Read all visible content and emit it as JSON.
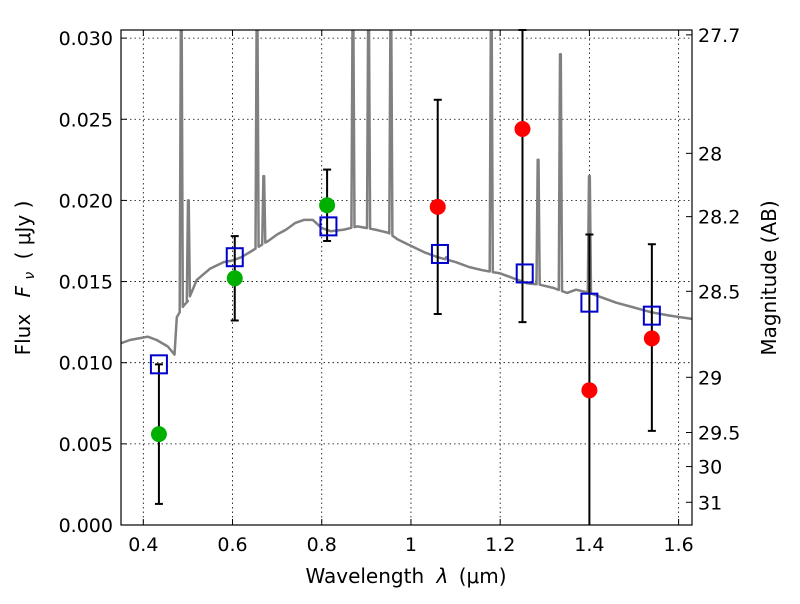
{
  "chart_data": {
    "type": "scatter",
    "xlabel_text": "Wavelength",
    "xlabel_symbol": "λ",
    "xlabel_unit": "(μm)",
    "ylabel_text": "Flux",
    "ylabel_symbol": "F",
    "ylabel_sub": "ν",
    "ylabel_unit": "( μJy )",
    "y2label": "Magnitude (AB)",
    "xlim": [
      0.35,
      1.63
    ],
    "ylim": [
      0.0,
      0.0305
    ],
    "grid": true,
    "x_ticks": [
      0.4,
      0.6,
      0.8,
      1.0,
      1.2,
      1.4,
      1.6
    ],
    "x_tick_labels": [
      "0.4",
      "0.6",
      "0.8",
      "1",
      "1.2",
      "1.4",
      "1.6"
    ],
    "y_ticks": [
      0.0,
      0.005,
      0.01,
      0.015,
      0.02,
      0.025,
      0.03
    ],
    "y_tick_labels": [
      "0.000",
      "0.005",
      "0.010",
      "0.015",
      "0.020",
      "0.025",
      "0.030"
    ],
    "mag_ticks": [
      {
        "label": "27.7",
        "flux": 0.0302
      },
      {
        "label": "28",
        "flux": 0.0229
      },
      {
        "label": "28.2",
        "flux": 0.019
      },
      {
        "label": "28.5",
        "flux": 0.0144
      },
      {
        "label": "29",
        "flux": 0.0091
      },
      {
        "label": "29.5",
        "flux": 0.0057
      },
      {
        "label": "30",
        "flux": 0.0036
      },
      {
        "label": "31",
        "flux": 0.0014
      }
    ],
    "template_spectrum": {
      "color": "#808080",
      "continuum": [
        [
          0.35,
          0.0112
        ],
        [
          0.37,
          0.0114
        ],
        [
          0.39,
          0.0115
        ],
        [
          0.41,
          0.0116
        ],
        [
          0.43,
          0.0114
        ],
        [
          0.455,
          0.011
        ],
        [
          0.47,
          0.0105
        ],
        [
          0.475,
          0.0128
        ],
        [
          0.49,
          0.0135
        ],
        [
          0.5,
          0.0138
        ],
        [
          0.52,
          0.0151
        ],
        [
          0.55,
          0.0158
        ],
        [
          0.58,
          0.0162
        ],
        [
          0.6,
          0.0163
        ],
        [
          0.62,
          0.0165
        ],
        [
          0.65,
          0.017
        ],
        [
          0.68,
          0.0175
        ],
        [
          0.7,
          0.0179
        ],
        [
          0.72,
          0.0182
        ],
        [
          0.74,
          0.0186
        ],
        [
          0.76,
          0.0188
        ],
        [
          0.78,
          0.0188
        ],
        [
          0.8,
          0.0183
        ],
        [
          0.82,
          0.0181
        ],
        [
          0.85,
          0.0182
        ],
        [
          0.88,
          0.0184
        ],
        [
          0.9,
          0.0183
        ],
        [
          0.92,
          0.0182
        ],
        [
          0.95,
          0.018
        ],
        [
          0.97,
          0.0176
        ],
        [
          1.0,
          0.0172
        ],
        [
          1.03,
          0.0168
        ],
        [
          1.06,
          0.0165
        ],
        [
          1.1,
          0.0162
        ],
        [
          1.13,
          0.0159
        ],
        [
          1.16,
          0.0157
        ],
        [
          1.2,
          0.0155
        ],
        [
          1.23,
          0.0152
        ],
        [
          1.26,
          0.0149
        ],
        [
          1.29,
          0.0148
        ],
        [
          1.32,
          0.0146
        ],
        [
          1.35,
          0.0143
        ],
        [
          1.37,
          0.0145
        ],
        [
          1.4,
          0.0143
        ],
        [
          1.43,
          0.014
        ],
        [
          1.46,
          0.0137
        ],
        [
          1.5,
          0.0134
        ],
        [
          1.54,
          0.0131
        ],
        [
          1.58,
          0.0129
        ],
        [
          1.63,
          0.0127
        ]
      ],
      "lines": [
        {
          "x": 0.485,
          "peak": 0.032
        },
        {
          "x": 0.501,
          "peak": 0.02
        },
        {
          "x": 0.655,
          "peak": 0.032
        },
        {
          "x": 0.67,
          "peak": 0.0215
        },
        {
          "x": 0.87,
          "peak": 0.032
        },
        {
          "x": 0.905,
          "peak": 0.032
        },
        {
          "x": 0.955,
          "peak": 0.032
        },
        {
          "x": 1.08,
          "peak": 0.0165
        },
        {
          "x": 1.18,
          "peak": 0.032
        },
        {
          "x": 1.285,
          "peak": 0.0225
        },
        {
          "x": 1.335,
          "peak": 0.029
        },
        {
          "x": 1.4,
          "peak": 0.0215
        }
      ]
    },
    "series": [
      {
        "marker": "circle",
        "color": "#00b000",
        "points": [
          {
            "x": 0.435,
            "y": 0.0056,
            "err_lo": 0.0013,
            "err_hi": 0.0099
          },
          {
            "x": 0.605,
            "y": 0.0152,
            "err_lo": 0.0126,
            "err_hi": 0.0178
          },
          {
            "x": 0.812,
            "y": 0.0197,
            "err_lo": 0.0175,
            "err_hi": 0.0219
          }
        ]
      },
      {
        "marker": "circle",
        "color": "#ff0000",
        "points": [
          {
            "x": 1.06,
            "y": 0.0196,
            "err_lo": 0.013,
            "err_hi": 0.0262
          },
          {
            "x": 1.25,
            "y": 0.0244,
            "err_lo": 0.0125,
            "err_hi": 0.0305
          },
          {
            "x": 1.4,
            "y": 0.0083,
            "err_lo": 0.0,
            "err_hi": 0.0179
          },
          {
            "x": 1.54,
            "y": 0.0115,
            "err_lo": 0.0058,
            "err_hi": 0.0173
          }
        ]
      },
      {
        "marker": "square",
        "color": "#0000cc",
        "points": [
          {
            "x": 0.435,
            "y": 0.0099
          },
          {
            "x": 0.605,
            "y": 0.0165
          },
          {
            "x": 0.815,
            "y": 0.0184
          },
          {
            "x": 1.065,
            "y": 0.0167
          },
          {
            "x": 1.255,
            "y": 0.0155
          },
          {
            "x": 1.4,
            "y": 0.0137
          },
          {
            "x": 1.54,
            "y": 0.0129
          }
        ]
      }
    ]
  }
}
